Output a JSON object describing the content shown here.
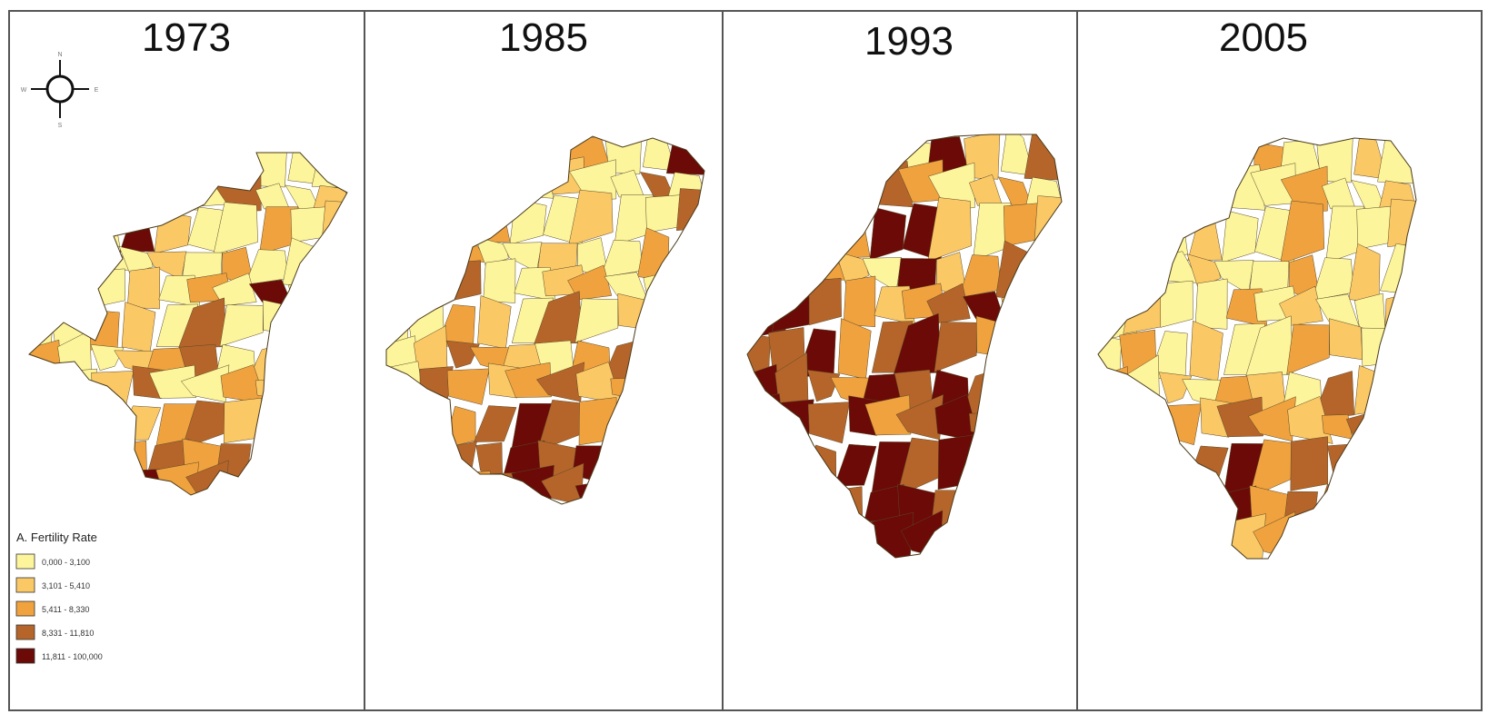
{
  "panels": [
    {
      "year": "1973",
      "district_classes": [
        0,
        1,
        0,
        0,
        2,
        0,
        1,
        0,
        0,
        0,
        1,
        0,
        1,
        2,
        0,
        0,
        3,
        0,
        0,
        1,
        2,
        0,
        0,
        4,
        1,
        0,
        0,
        2,
        0,
        1,
        0,
        3,
        0,
        0,
        1,
        0,
        2,
        0,
        0,
        1,
        3,
        0,
        0,
        1,
        0,
        2,
        0,
        4,
        0,
        1,
        0,
        0,
        2,
        1,
        0,
        3,
        0,
        0,
        1,
        0,
        2,
        0,
        0,
        1,
        2,
        3,
        0,
        1,
        0,
        0,
        2,
        0,
        1,
        3,
        0,
        0,
        2,
        1,
        0,
        4,
        3,
        2,
        0,
        1,
        2,
        3,
        1,
        2,
        3,
        4,
        2,
        3,
        1,
        2,
        3,
        2,
        3,
        4,
        2,
        3,
        3,
        2,
        3,
        4,
        2,
        3,
        2,
        3,
        3,
        4
      ]
    },
    {
      "year": "1985",
      "district_classes": [
        0,
        1,
        0,
        4,
        0,
        1,
        2,
        0,
        0,
        4,
        1,
        0,
        0,
        2,
        0,
        1,
        0,
        0,
        3,
        0,
        0,
        1,
        0,
        2,
        0,
        0,
        1,
        0,
        0,
        3,
        0,
        1,
        2,
        0,
        0,
        1,
        0,
        0,
        2,
        0,
        1,
        0,
        3,
        0,
        0,
        1,
        2,
        0,
        0,
        1,
        0,
        0,
        2,
        1,
        0,
        3,
        0,
        1,
        2,
        0,
        0,
        1,
        3,
        2,
        1,
        0,
        2,
        3,
        1,
        2,
        0,
        3,
        2,
        1,
        2,
        3,
        1,
        2,
        3,
        4,
        2,
        3,
        2,
        3,
        4,
        3,
        2,
        3,
        4,
        3,
        2,
        4,
        3,
        3,
        4,
        3,
        4,
        3,
        4,
        4,
        3,
        4,
        2,
        3,
        4,
        3,
        4,
        4,
        3,
        4
      ]
    },
    {
      "year": "1993",
      "district_classes": [
        1,
        3,
        0,
        1,
        2,
        0,
        4,
        1,
        0,
        3,
        1,
        2,
        0,
        1,
        3,
        2,
        0,
        1,
        2,
        0,
        1,
        3,
        0,
        2,
        4,
        4,
        1,
        0,
        2,
        1,
        3,
        0,
        2,
        1,
        0,
        4,
        1,
        2,
        3,
        0,
        4,
        4,
        3,
        2,
        1,
        2,
        3,
        4,
        1,
        2,
        3,
        3,
        4,
        2,
        3,
        4,
        3,
        2,
        3,
        4,
        4,
        3,
        3,
        2,
        4,
        3,
        4,
        3,
        2,
        3,
        4,
        4,
        3,
        4,
        2,
        3,
        4,
        3,
        4,
        4,
        3,
        4,
        3,
        4,
        4,
        3,
        4,
        4,
        3,
        4,
        4,
        3,
        4,
        3,
        4,
        4,
        3,
        3,
        4,
        4,
        3,
        4,
        4,
        3,
        4,
        4,
        3,
        4,
        3,
        3
      ]
    },
    {
      "year": "2005",
      "district_classes": [
        0,
        0,
        1,
        0,
        0,
        2,
        0,
        0,
        1,
        0,
        0,
        0,
        1,
        0,
        0,
        0,
        2,
        0,
        0,
        1,
        0,
        0,
        0,
        1,
        0,
        0,
        2,
        0,
        0,
        1,
        0,
        0,
        0,
        1,
        0,
        0,
        2,
        0,
        1,
        0,
        0,
        1,
        0,
        0,
        2,
        0,
        1,
        0,
        0,
        1,
        0,
        2,
        0,
        1,
        0,
        0,
        2,
        1,
        0,
        1,
        2,
        0,
        1,
        0,
        2,
        1,
        0,
        3,
        1,
        2,
        0,
        1,
        2,
        1,
        3,
        2,
        1,
        2,
        3,
        2,
        1,
        3,
        2,
        3,
        4,
        2,
        3,
        3,
        2,
        4,
        3,
        2,
        3,
        3,
        4,
        2,
        3,
        3,
        2,
        3,
        3,
        2,
        2,
        3,
        1,
        2,
        2,
        2,
        3,
        2
      ]
    }
  ],
  "compass": {
    "north": "N",
    "south": "S",
    "east": "E",
    "west": "W"
  },
  "legend": {
    "title": "A. Fertility Rate",
    "items": [
      {
        "label": "0,000 - 3,100",
        "color": "#fdf59c"
      },
      {
        "label": "3,101 - 5,410",
        "color": "#fbc866"
      },
      {
        "label": "5,411 - 8,330",
        "color": "#f0a23e"
      },
      {
        "label": "8,331 - 11,810",
        "color": "#b5652a"
      },
      {
        "label": "11,811 - 100,000",
        "color": "#6b0a06"
      }
    ]
  }
}
